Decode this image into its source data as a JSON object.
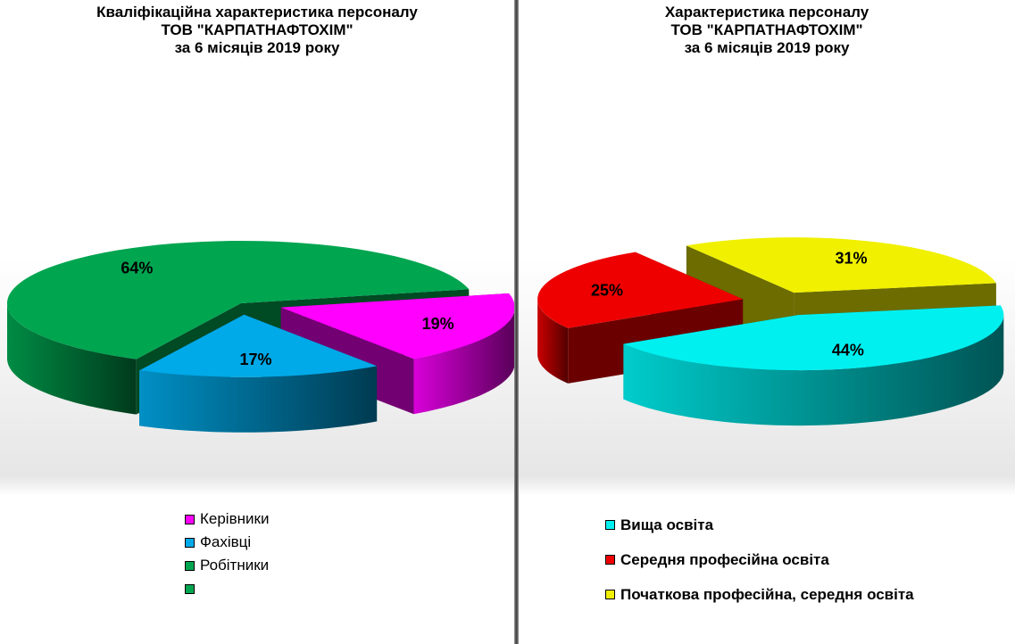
{
  "chart_data": [
    {
      "type": "pie",
      "title": [
        "Кваліфікаційна характеристика персоналу",
        "ТОВ \"КАРПАТНАФТОХІМ\"",
        "за 6 місяців 2019 року"
      ],
      "categories": [
        "Керівники",
        "Фахівці",
        "Робітники",
        ""
      ],
      "values": [
        19,
        17,
        64,
        0
      ],
      "value_labels": [
        "19%",
        "17%",
        "64%",
        ""
      ],
      "colors": [
        "#ff00ff",
        "#00a9e8",
        "#00a550",
        "#00a550"
      ],
      "legend": "bottom"
    },
    {
      "type": "pie",
      "title": [
        "Характеристика персоналу",
        "ТОВ \"КАРПАТНАФТОХІМ\"",
        "за 6 місяців 2019 року"
      ],
      "categories": [
        "Вища освіта",
        "Середня професійна освіта",
        "Початкова професійна, середня освіта"
      ],
      "values": [
        44,
        25,
        31
      ],
      "value_labels": [
        "44%",
        "25%",
        "31%"
      ],
      "colors": [
        "#00f0f0",
        "#ee0000",
        "#f0f000"
      ],
      "legend": "bottom"
    }
  ]
}
